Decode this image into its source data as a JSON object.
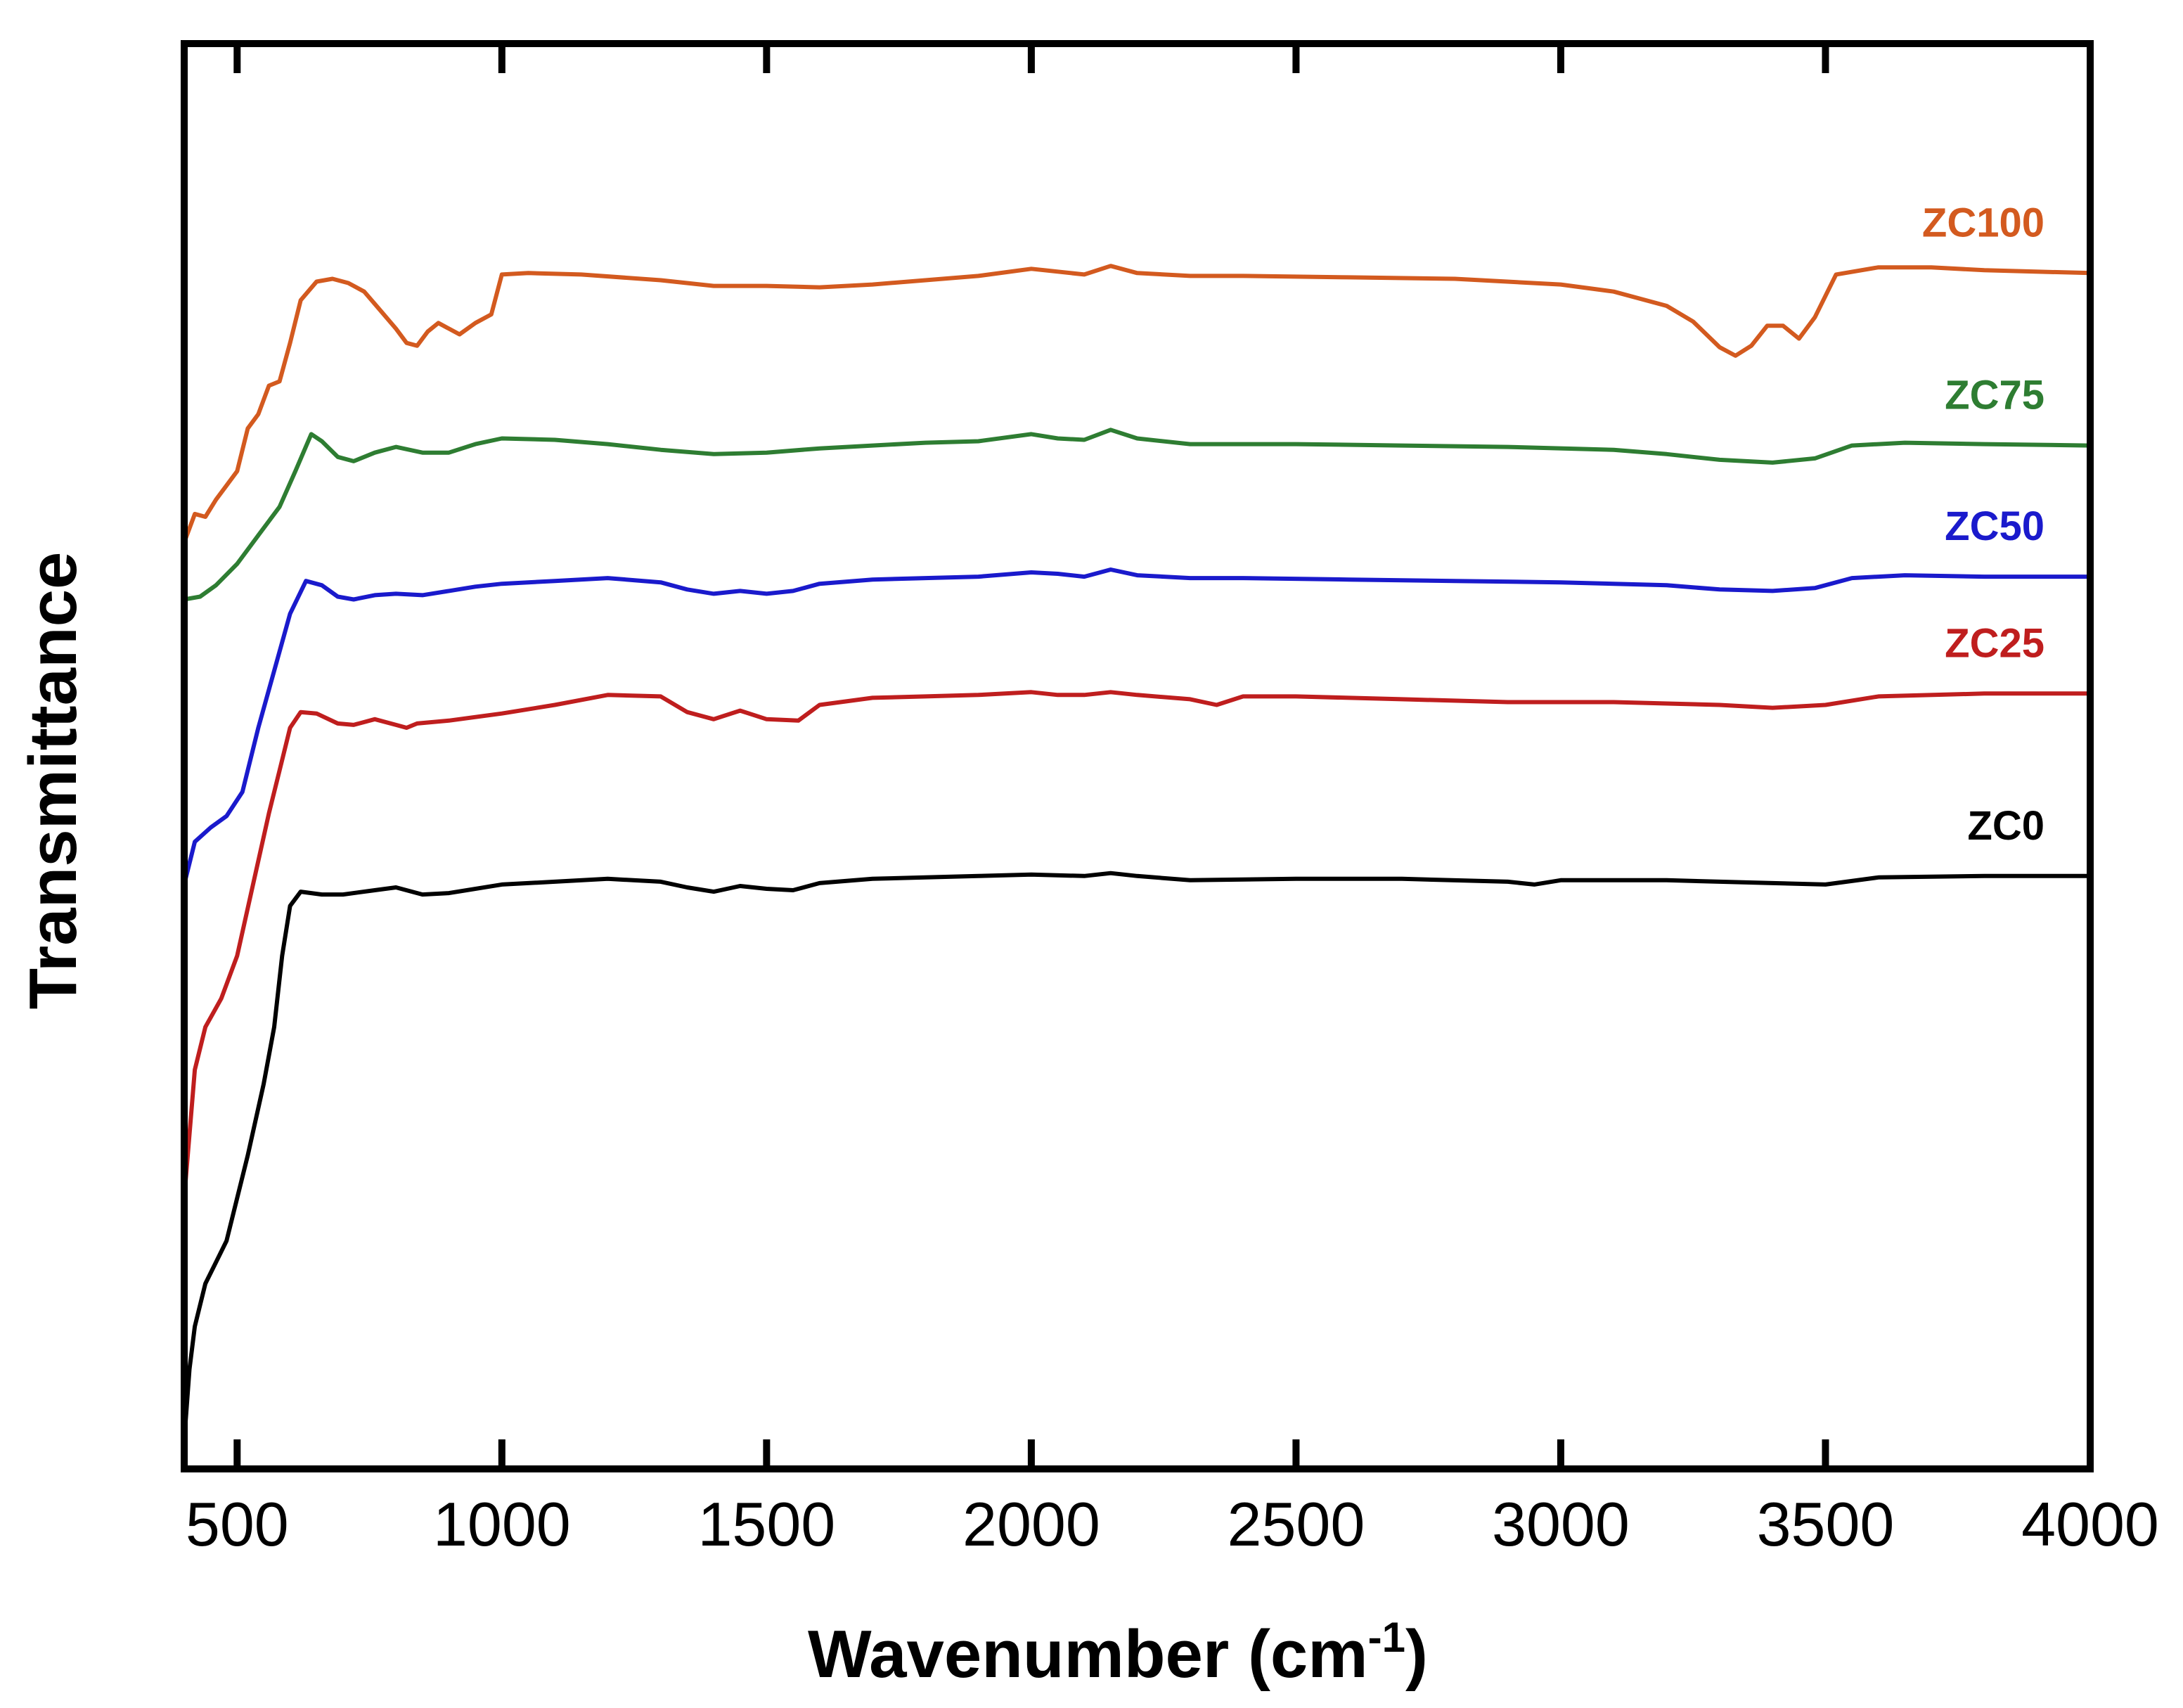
{
  "chart_data": {
    "type": "line",
    "title": "",
    "xlabel": "Wavenumber (cm",
    "xlabel_sup": "-1",
    "xlabel_end": ")",
    "ylabel": "Transmittance",
    "xlim": [
      400,
      4000
    ],
    "ylim": [
      0,
      100
    ],
    "y_ticks_shown": false,
    "grid": false,
    "x_ticks": [
      "500",
      "1000",
      "1500",
      "2000",
      "2500",
      "3000",
      "3500",
      "4000"
    ],
    "series": [
      {
        "name": "ZC100",
        "color": "#D35A1F",
        "points": [
          [
            400,
            65
          ],
          [
            420,
            67
          ],
          [
            440,
            66.8
          ],
          [
            460,
            68
          ],
          [
            480,
            69
          ],
          [
            500,
            70
          ],
          [
            520,
            73
          ],
          [
            540,
            74
          ],
          [
            560,
            76
          ],
          [
            580,
            76.3
          ],
          [
            600,
            79
          ],
          [
            620,
            82
          ],
          [
            650,
            83.3
          ],
          [
            680,
            83.5
          ],
          [
            710,
            83.2
          ],
          [
            740,
            82.6
          ],
          [
            770,
            81.3
          ],
          [
            800,
            80
          ],
          [
            820,
            79
          ],
          [
            840,
            78.8
          ],
          [
            860,
            79.8
          ],
          [
            880,
            80.4
          ],
          [
            900,
            80
          ],
          [
            920,
            79.6
          ],
          [
            950,
            80.4
          ],
          [
            980,
            81
          ],
          [
            1000,
            83.8
          ],
          [
            1050,
            83.9
          ],
          [
            1150,
            83.8
          ],
          [
            1300,
            83.4
          ],
          [
            1400,
            83
          ],
          [
            1500,
            83
          ],
          [
            1600,
            82.9
          ],
          [
            1700,
            83.1
          ],
          [
            1800,
            83.4
          ],
          [
            1900,
            83.7
          ],
          [
            2000,
            84.2
          ],
          [
            2050,
            84
          ],
          [
            2100,
            83.8
          ],
          [
            2150,
            84.4
          ],
          [
            2200,
            83.9
          ],
          [
            2300,
            83.7
          ],
          [
            2400,
            83.7
          ],
          [
            2600,
            83.6
          ],
          [
            2800,
            83.5
          ],
          [
            3000,
            83.1
          ],
          [
            3100,
            82.6
          ],
          [
            3200,
            81.6
          ],
          [
            3250,
            80.5
          ],
          [
            3300,
            78.7
          ],
          [
            3330,
            78.1
          ],
          [
            3360,
            78.8
          ],
          [
            3390,
            80.2
          ],
          [
            3420,
            80.2
          ],
          [
            3450,
            79.3
          ],
          [
            3480,
            80.8
          ],
          [
            3520,
            83.8
          ],
          [
            3600,
            84.3
          ],
          [
            3700,
            84.3
          ],
          [
            3800,
            84.1
          ],
          [
            4000,
            83.9
          ]
        ]
      },
      {
        "name": "ZC75",
        "color": "#2E7D32",
        "points": [
          [
            400,
            61
          ],
          [
            430,
            61.2
          ],
          [
            460,
            62
          ],
          [
            500,
            63.5
          ],
          [
            540,
            65.5
          ],
          [
            580,
            67.5
          ],
          [
            610,
            70
          ],
          [
            640,
            72.6
          ],
          [
            660,
            72.1
          ],
          [
            690,
            71
          ],
          [
            720,
            70.7
          ],
          [
            760,
            71.3
          ],
          [
            800,
            71.7
          ],
          [
            850,
            71.3
          ],
          [
            900,
            71.3
          ],
          [
            950,
            71.9
          ],
          [
            1000,
            72.3
          ],
          [
            1100,
            72.2
          ],
          [
            1200,
            71.9
          ],
          [
            1300,
            71.5
          ],
          [
            1400,
            71.2
          ],
          [
            1500,
            71.3
          ],
          [
            1600,
            71.6
          ],
          [
            1700,
            71.8
          ],
          [
            1800,
            72
          ],
          [
            1900,
            72.1
          ],
          [
            2000,
            72.6
          ],
          [
            2050,
            72.3
          ],
          [
            2100,
            72.2
          ],
          [
            2150,
            72.9
          ],
          [
            2200,
            72.3
          ],
          [
            2300,
            71.9
          ],
          [
            2500,
            71.9
          ],
          [
            2700,
            71.8
          ],
          [
            2900,
            71.7
          ],
          [
            3100,
            71.5
          ],
          [
            3200,
            71.2
          ],
          [
            3300,
            70.8
          ],
          [
            3400,
            70.6
          ],
          [
            3480,
            70.9
          ],
          [
            3550,
            71.8
          ],
          [
            3650,
            72
          ],
          [
            3800,
            71.9
          ],
          [
            4000,
            71.8
          ]
        ]
      },
      {
        "name": "ZC50",
        "color": "#1A1ACC",
        "points": [
          [
            400,
            41
          ],
          [
            420,
            44
          ],
          [
            450,
            45
          ],
          [
            480,
            45.8
          ],
          [
            510,
            47.5
          ],
          [
            540,
            52
          ],
          [
            570,
            56
          ],
          [
            600,
            60
          ],
          [
            630,
            62.3
          ],
          [
            660,
            62
          ],
          [
            690,
            61.2
          ],
          [
            720,
            61
          ],
          [
            760,
            61.3
          ],
          [
            800,
            61.4
          ],
          [
            850,
            61.3
          ],
          [
            900,
            61.6
          ],
          [
            950,
            61.9
          ],
          [
            1000,
            62.1
          ],
          [
            1100,
            62.3
          ],
          [
            1200,
            62.5
          ],
          [
            1300,
            62.2
          ],
          [
            1350,
            61.7
          ],
          [
            1400,
            61.4
          ],
          [
            1450,
            61.6
          ],
          [
            1500,
            61.4
          ],
          [
            1550,
            61.6
          ],
          [
            1600,
            62.1
          ],
          [
            1700,
            62.4
          ],
          [
            1800,
            62.5
          ],
          [
            1900,
            62.6
          ],
          [
            2000,
            62.9
          ],
          [
            2050,
            62.8
          ],
          [
            2100,
            62.6
          ],
          [
            2150,
            63.1
          ],
          [
            2200,
            62.7
          ],
          [
            2300,
            62.5
          ],
          [
            2400,
            62.5
          ],
          [
            2600,
            62.4
          ],
          [
            2800,
            62.3
          ],
          [
            3000,
            62.2
          ],
          [
            3200,
            62
          ],
          [
            3300,
            61.7
          ],
          [
            3400,
            61.6
          ],
          [
            3480,
            61.8
          ],
          [
            3550,
            62.5
          ],
          [
            3650,
            62.7
          ],
          [
            3800,
            62.6
          ],
          [
            4000,
            62.6
          ]
        ]
      },
      {
        "name": "ZC25",
        "color": "#BF1E1E",
        "points": [
          [
            400,
            19
          ],
          [
            420,
            28
          ],
          [
            440,
            31
          ],
          [
            470,
            33
          ],
          [
            500,
            36
          ],
          [
            530,
            41
          ],
          [
            560,
            46
          ],
          [
            580,
            49
          ],
          [
            600,
            52
          ],
          [
            620,
            53.1
          ],
          [
            650,
            53
          ],
          [
            690,
            52.3
          ],
          [
            720,
            52.2
          ],
          [
            760,
            52.6
          ],
          [
            800,
            52.2
          ],
          [
            820,
            52
          ],
          [
            840,
            52.3
          ],
          [
            900,
            52.5
          ],
          [
            1000,
            53
          ],
          [
            1100,
            53.6
          ],
          [
            1200,
            54.3
          ],
          [
            1300,
            54.2
          ],
          [
            1350,
            53.1
          ],
          [
            1400,
            52.6
          ],
          [
            1450,
            53.2
          ],
          [
            1500,
            52.6
          ],
          [
            1560,
            52.5
          ],
          [
            1600,
            53.6
          ],
          [
            1700,
            54.1
          ],
          [
            1800,
            54.2
          ],
          [
            1900,
            54.3
          ],
          [
            2000,
            54.5
          ],
          [
            2050,
            54.3
          ],
          [
            2100,
            54.3
          ],
          [
            2150,
            54.5
          ],
          [
            2200,
            54.3
          ],
          [
            2300,
            54
          ],
          [
            2350,
            53.6
          ],
          [
            2400,
            54.2
          ],
          [
            2500,
            54.2
          ],
          [
            2700,
            54
          ],
          [
            2900,
            53.8
          ],
          [
            3100,
            53.8
          ],
          [
            3300,
            53.6
          ],
          [
            3400,
            53.4
          ],
          [
            3500,
            53.6
          ],
          [
            3600,
            54.2
          ],
          [
            3800,
            54.4
          ],
          [
            4000,
            54.4
          ]
        ]
      },
      {
        "name": "ZC0",
        "color": "#000000",
        "points": [
          [
            400,
            2
          ],
          [
            410,
            7
          ],
          [
            420,
            10
          ],
          [
            440,
            13
          ],
          [
            460,
            14.5
          ],
          [
            480,
            16
          ],
          [
            500,
            19
          ],
          [
            520,
            22
          ],
          [
            550,
            27
          ],
          [
            570,
            31
          ],
          [
            585,
            36
          ],
          [
            600,
            39.5
          ],
          [
            620,
            40.5
          ],
          [
            660,
            40.3
          ],
          [
            700,
            40.3
          ],
          [
            760,
            40.6
          ],
          [
            800,
            40.8
          ],
          [
            850,
            40.3
          ],
          [
            900,
            40.4
          ],
          [
            1000,
            41
          ],
          [
            1100,
            41.2
          ],
          [
            1200,
            41.4
          ],
          [
            1300,
            41.2
          ],
          [
            1350,
            40.8
          ],
          [
            1400,
            40.5
          ],
          [
            1450,
            40.9
          ],
          [
            1500,
            40.7
          ],
          [
            1550,
            40.6
          ],
          [
            1600,
            41.1
          ],
          [
            1700,
            41.4
          ],
          [
            1800,
            41.5
          ],
          [
            1900,
            41.6
          ],
          [
            2000,
            41.7
          ],
          [
            2100,
            41.6
          ],
          [
            2150,
            41.8
          ],
          [
            2200,
            41.6
          ],
          [
            2300,
            41.3
          ],
          [
            2500,
            41.4
          ],
          [
            2700,
            41.4
          ],
          [
            2900,
            41.2
          ],
          [
            2950,
            41
          ],
          [
            3000,
            41.3
          ],
          [
            3200,
            41.3
          ],
          [
            3400,
            41.1
          ],
          [
            3500,
            41
          ],
          [
            3600,
            41.5
          ],
          [
            3800,
            41.6
          ],
          [
            4000,
            41.6
          ]
        ]
      }
    ]
  }
}
